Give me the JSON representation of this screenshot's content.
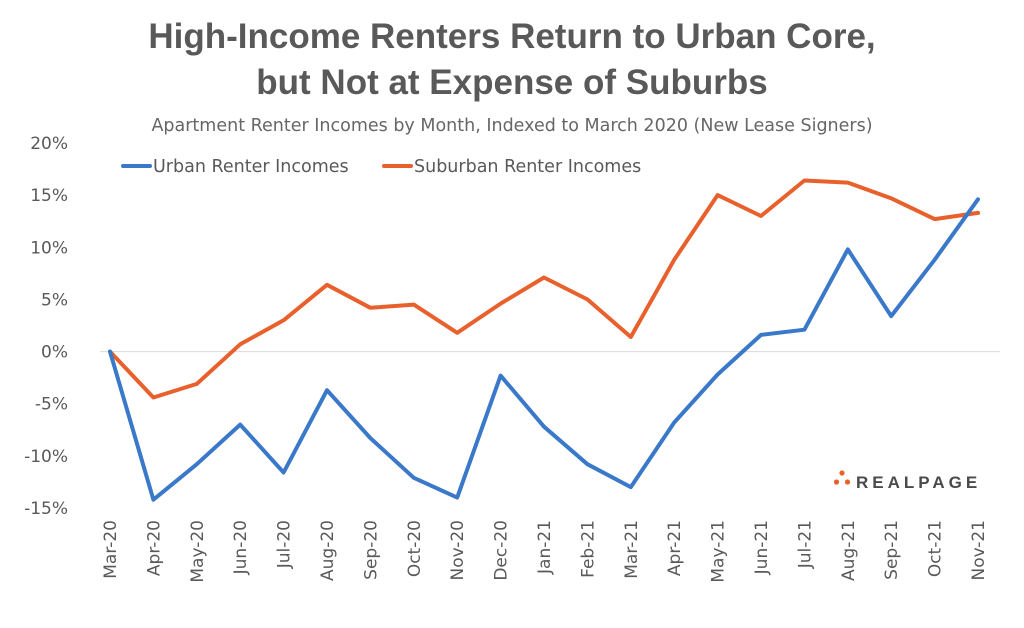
{
  "chart_data": {
    "type": "line",
    "title_line1": "High-Income Renters Return to Urban Core,",
    "title_line2": "but Not at Expense of Suburbs",
    "subtitle": "Apartment Renter Incomes by Month, Indexed to March 2020 (New Lease Signers)",
    "xlabel": "",
    "ylabel": "",
    "categories": [
      "Mar-20",
      "Apr-20",
      "May-20",
      "Jun-20",
      "Jul-20",
      "Aug-20",
      "Sep-20",
      "Oct-20",
      "Nov-20",
      "Dec-20",
      "Jan-21",
      "Feb-21",
      "Mar-21",
      "Apr-21",
      "May-21",
      "Jun-21",
      "Jul-21",
      "Aug-21",
      "Sep-21",
      "Oct-21",
      "Nov-21"
    ],
    "ylim": [
      -15,
      20
    ],
    "yticks": [
      20,
      15,
      10,
      5,
      0,
      -5,
      -10,
      -15
    ],
    "ytick_labels": [
      "20%",
      "15%",
      "10%",
      "5%",
      "0%",
      "-5%",
      "-10%",
      "-15%"
    ],
    "grid": false,
    "zero_line": true,
    "legend_position": "top-left",
    "series": [
      {
        "name": "Urban Renter Incomes",
        "color": "#3a78c9",
        "values": [
          0,
          -14.2,
          -10.8,
          -7.0,
          -11.6,
          -3.7,
          -8.3,
          -12.1,
          -14.0,
          -2.3,
          -7.2,
          -10.8,
          -13.0,
          -6.8,
          -2.2,
          1.6,
          2.1,
          9.8,
          3.4,
          8.8,
          14.6
        ]
      },
      {
        "name": "Suburban Renter Incomes",
        "color": "#e8612c",
        "values": [
          0,
          -4.4,
          -3.1,
          0.7,
          3.0,
          6.4,
          4.2,
          4.5,
          1.8,
          4.6,
          7.1,
          5.0,
          1.4,
          8.8,
          15.0,
          13.0,
          16.4,
          16.2,
          14.7,
          12.7,
          13.3
        ]
      }
    ]
  },
  "branding": {
    "logo_text": "REALPAGE",
    "logo_dot_color": "#e8612c"
  }
}
